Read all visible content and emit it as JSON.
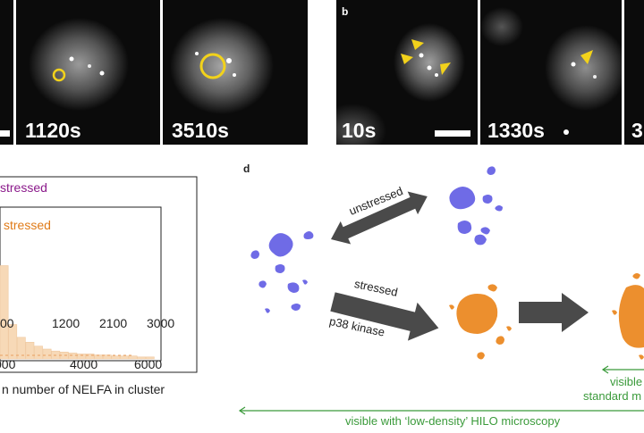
{
  "panel_b_label": "b",
  "panel_d_label": "d",
  "panel_a_times": [
    "1120s",
    "3510s"
  ],
  "panel_b_times": [
    "10s",
    "1330s",
    "3"
  ],
  "chart_data": {
    "type": "bar",
    "legend": [
      "stressed",
      "stressed"
    ],
    "legend_colors": [
      "#8b1a8b",
      "#e07b18"
    ],
    "inset_x_ticks": [
      "00",
      "1200",
      "2100",
      "3000"
    ],
    "outer_x_ticks": [
      "000",
      "4000",
      "6000"
    ],
    "xlabel": "n number of NELFA in cluster",
    "bar_values_estimated": [
      0.95,
      0.35,
      0.22,
      0.17,
      0.13,
      0.1,
      0.08,
      0.07,
      0.06,
      0.05,
      0.05,
      0.04,
      0.04,
      0.03,
      0.03,
      0.03,
      0.02,
      0.02
    ]
  },
  "diagram": {
    "unstressed_label": "unstressed",
    "stressed_label": "stressed",
    "kinase_label": "p38 kinase",
    "visible_standard_line1": "visible",
    "visible_standard_line2": "standard m",
    "visible_hilo": "visible with ‘low-density’ HILO microscopy",
    "colors": {
      "unstressed": "#6f6be6",
      "stressed": "#ec8f2e",
      "arrow": "#4a4a4a",
      "green": "#3a9a3a"
    }
  }
}
